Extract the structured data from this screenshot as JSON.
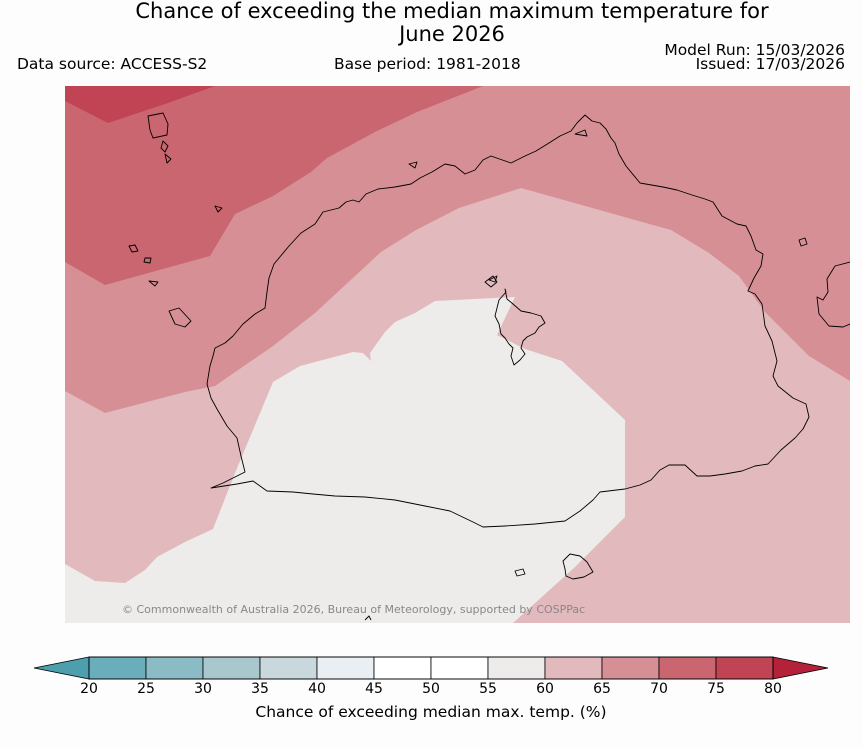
{
  "title_line1": "Chance of exceeding the median maximum temperature for",
  "title_line2": "June 2026",
  "data_source": "Data source: ACCESS-S2",
  "base_period": "Base period: 1981-2018",
  "model_run": "Model Run: 15/03/2026",
  "issued": "Issued: 17/03/2026",
  "copyright": "© Commonwealth of Australia 2026, Bureau of Meteorology, supported by COSPPac",
  "colorbar": {
    "title": "Chance of exceeding median max. temp. (%)",
    "ticks": [
      "20",
      "25",
      "30",
      "35",
      "40",
      "45",
      "50",
      "55",
      "60",
      "65",
      "70",
      "75",
      "80"
    ],
    "low_extend_color": "#4e9fae",
    "high_extend_color": "#b5203a",
    "bin_colors": [
      "#6aaebb",
      "#8bbcc6",
      "#a9c8cd",
      "#c8d8dc",
      "#e9eff2",
      "#ffffff",
      "#ffffff",
      "#eeeceb",
      "#e2b9bd",
      "#d68f95",
      "#c96670",
      "#c04453"
    ]
  },
  "map": {
    "zone_colors": {
      "p55_60": "#eeeceb",
      "p60_65": "#e2b9bd",
      "p65_70": "#d68f95",
      "p70_75": "#c96670",
      "p75_80": "#c04453"
    },
    "coastline_color": "#000000"
  }
}
